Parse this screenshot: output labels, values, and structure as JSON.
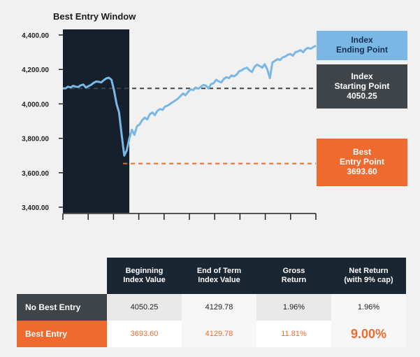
{
  "chart_data": {
    "type": "line",
    "title": "Best Entry Window",
    "ylim": [
      3400,
      4400
    ],
    "y_ticks": [
      "4,400.00",
      "4,200.00",
      "4,000.00",
      "3,800.00",
      "3,600.00",
      "3,400.00"
    ],
    "y_tick_values": [
      4400,
      4200,
      4000,
      3800,
      3600,
      3400
    ],
    "x_count": 100,
    "window_end_index": 26,
    "starting_value": 4050.25,
    "best_entry_value": 3693.6,
    "best_entry_index": 23,
    "series": [
      {
        "name": "Index",
        "values": [
          4090,
          4090,
          4100,
          4095,
          4105,
          4100,
          4098,
          4108,
          4112,
          4095,
          4103,
          4110,
          4122,
          4130,
          4128,
          4125,
          4138,
          4148,
          4152,
          4140,
          4080,
          4000,
          3950,
          3820,
          3700,
          3730,
          3800,
          3850,
          3820,
          3870,
          3880,
          3905,
          3920,
          3910,
          3940,
          3950,
          3935,
          3960,
          3970,
          3965,
          3985,
          3990,
          4000,
          4010,
          4020,
          4030,
          4045,
          4060,
          4050,
          4070,
          4085,
          4080,
          4095,
          4088,
          4100,
          4110,
          4105,
          4090,
          4115,
          4120,
          4140,
          4130,
          4125,
          4145,
          4155,
          4150,
          4165,
          4160,
          4170,
          4190,
          4195,
          4205,
          4210,
          4195,
          4185,
          4215,
          4228,
          4220,
          4210,
          4230,
          4200,
          4150,
          4240,
          4250,
          4260,
          4255,
          4270,
          4275,
          4285,
          4290,
          4280,
          4300,
          4305,
          4312,
          4300,
          4318,
          4325,
          4320,
          4330,
          4338
        ]
      }
    ]
  },
  "callouts": {
    "ending": {
      "line1": "Index",
      "line2": "Ending Point"
    },
    "starting": {
      "line1": "Index",
      "line2": "Starting Point",
      "value": "4050.25"
    },
    "best": {
      "line1": "Best",
      "line2": "Entry Point",
      "value": "3693.60"
    }
  },
  "table": {
    "headers": [
      {
        "l1": "Beginning",
        "l2": "Index Value"
      },
      {
        "l1": "End of Term",
        "l2": "Index Value"
      },
      {
        "l1": "Gross",
        "l2": "Return"
      },
      {
        "l1": "Net Return",
        "l2": "(with 9% cap)"
      }
    ],
    "rows": [
      {
        "label": "No Best Entry",
        "cells": [
          "4050.25",
          "4129.78",
          "1.96%",
          "1.96%"
        ]
      },
      {
        "label": "Best Entry",
        "cells": [
          "3693.60",
          "4129.78",
          "11.81%",
          "9.00%"
        ]
      }
    ]
  },
  "colors": {
    "series": "#7ab7e4",
    "window": "#15202c",
    "start_line": "#3f4448",
    "best_line": "#ef6a2f"
  }
}
